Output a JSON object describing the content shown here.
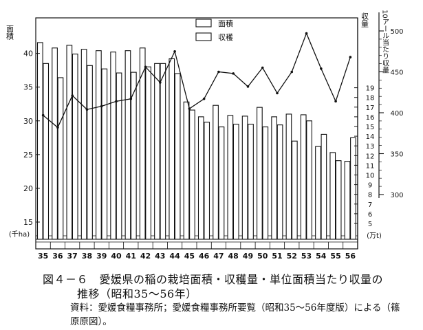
{
  "chart_data": {
    "type": "bar+line",
    "categories": [
      "35",
      "36",
      "37",
      "38",
      "39",
      "40",
      "41",
      "42",
      "43",
      "44",
      "45",
      "46",
      "47",
      "48",
      "49",
      "50",
      "51",
      "52",
      "53",
      "54",
      "55",
      "56"
    ],
    "series": [
      {
        "name": "面積",
        "axis": "left",
        "values": [
          41.6,
          40.8,
          41.2,
          40.6,
          40.4,
          40.2,
          40.4,
          40.8,
          38.5,
          39.2,
          32.8,
          30.6,
          32.3,
          30.8,
          30.7,
          32.0,
          30.6,
          31.0,
          30.9,
          26.2,
          25.3,
          24.0
        ]
      },
      {
        "name": "収穫",
        "axis": "left",
        "values": [
          38.5,
          36.4,
          39.9,
          38.2,
          37.7,
          37.1,
          37.2,
          38.0,
          38.5,
          37.0,
          31.6,
          29.8,
          29.1,
          29.5,
          29.5,
          29.1,
          29.4,
          27.0,
          30.0,
          28.0,
          24.1,
          27.5
        ]
      },
      {
        "name": "当たり収量",
        "axis": "right2",
        "type": "line",
        "values": [
          397,
          382,
          421,
          404,
          408,
          414,
          417,
          456,
          437,
          475,
          405,
          417,
          450,
          448,
          432,
          455,
          424,
          450,
          497,
          454,
          414,
          468
        ]
      }
    ],
    "left_axis": {
      "label": "面積",
      "unit_note": "(千ha)",
      "ticks": [
        15,
        20,
        25,
        30,
        35,
        40
      ],
      "range": [
        13,
        42.5
      ]
    },
    "right_axis_1": {
      "label": "収量",
      "unit_note": "(万t)",
      "ticks": [
        5,
        6,
        7,
        8,
        9,
        10,
        11,
        12,
        13,
        14,
        15,
        16,
        17,
        18,
        19
      ],
      "range": [
        4,
        19.5
      ]
    },
    "right_axis_2": {
      "label": "10アール当たり収量",
      "ticks": [
        300,
        350,
        400,
        450,
        500
      ],
      "range": [
        300,
        500
      ]
    },
    "legend": [
      "面積",
      "収穫"
    ],
    "legend_position": "top-center",
    "grid": false
  },
  "caption": {
    "line1": "図４－６　愛媛県の稲の栽培面積・収穫量・単位面積当たり収量の",
    "line2": "推移（昭和35～56年）",
    "source1": "資料：愛媛食糧事務所；愛媛食糧事務所要覧（昭和35～56年度版）による（篠",
    "source2": "原原図）。"
  }
}
